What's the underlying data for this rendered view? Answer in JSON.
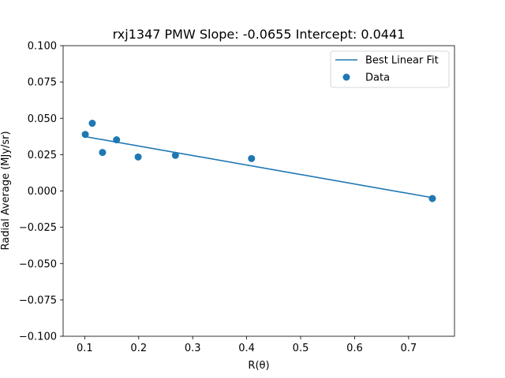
{
  "chart_data": {
    "type": "scatter",
    "title": "rxj1347  PMW  Slope: -0.0655  Intercept: 0.0441",
    "xlabel": "R(θ)",
    "ylabel": "Radial Average (MJy/sr)",
    "xlim": [
      0.06,
      0.785
    ],
    "ylim": [
      -0.1,
      0.1
    ],
    "x_ticks": [
      0.1,
      0.2,
      0.3,
      0.4,
      0.5,
      0.6,
      0.7
    ],
    "x_tick_labels": [
      "0.1",
      "0.2",
      "0.3",
      "0.4",
      "0.5",
      "0.6",
      "0.7"
    ],
    "y_ticks": [
      -0.1,
      -0.075,
      -0.05,
      -0.025,
      0.0,
      0.025,
      0.05,
      0.075,
      0.1
    ],
    "y_tick_labels": [
      "−0.100",
      "−0.075",
      "−0.050",
      "−0.025",
      "0.000",
      "0.025",
      "0.050",
      "0.075",
      "0.100"
    ],
    "grid": false,
    "legend_position": "top-right",
    "series": [
      {
        "name": "Best Linear Fit",
        "kind": "line",
        "color": "#1f77b4",
        "x": [
          0.101,
          0.744
        ],
        "y": [
          0.0374,
          -0.0046
        ]
      },
      {
        "name": "Data",
        "kind": "scatter",
        "color": "#1f77b4",
        "x": [
          0.101,
          0.114,
          0.133,
          0.159,
          0.199,
          0.268,
          0.409,
          0.744
        ],
        "y": [
          0.0389,
          0.0466,
          0.0265,
          0.0352,
          0.0234,
          0.0245,
          0.0223,
          -0.0052
        ]
      }
    ]
  }
}
